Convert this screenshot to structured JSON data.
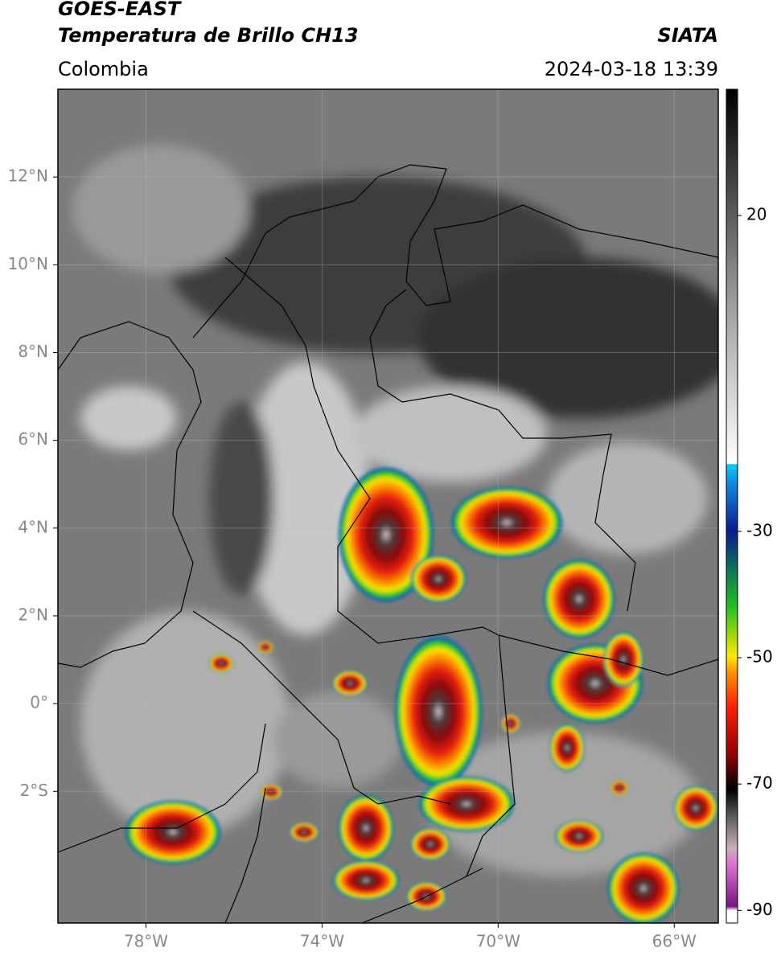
{
  "header": {
    "title": "GOES-EAST",
    "subtitle": "Temperatura de Brillo CH13",
    "source": "SIATA",
    "region": "Colombia",
    "datetime": "2024-03-18 13:39"
  },
  "map": {
    "lonlim": [
      -80,
      -65
    ],
    "latlim": [
      -5,
      14
    ],
    "lon_ticks": [
      {
        "value": -78,
        "label": "78°W"
      },
      {
        "value": -74,
        "label": "74°W"
      },
      {
        "value": -70,
        "label": "70°W"
      },
      {
        "value": -66,
        "label": "66°W"
      }
    ],
    "lat_ticks": [
      {
        "value": 12,
        "label": "12°N"
      },
      {
        "value": 10,
        "label": "10°N"
      },
      {
        "value": 8,
        "label": "8°N"
      },
      {
        "value": 6,
        "label": "6°N"
      },
      {
        "value": 4,
        "label": "4°N"
      },
      {
        "value": 2,
        "label": "2°N"
      },
      {
        "value": 0,
        "label": "0°"
      },
      {
        "value": -2,
        "label": "2°S"
      }
    ]
  },
  "colorbar": {
    "lim": [
      -92,
      40
    ],
    "ticks": [
      20,
      -30,
      -50,
      -70,
      -90
    ]
  }
}
